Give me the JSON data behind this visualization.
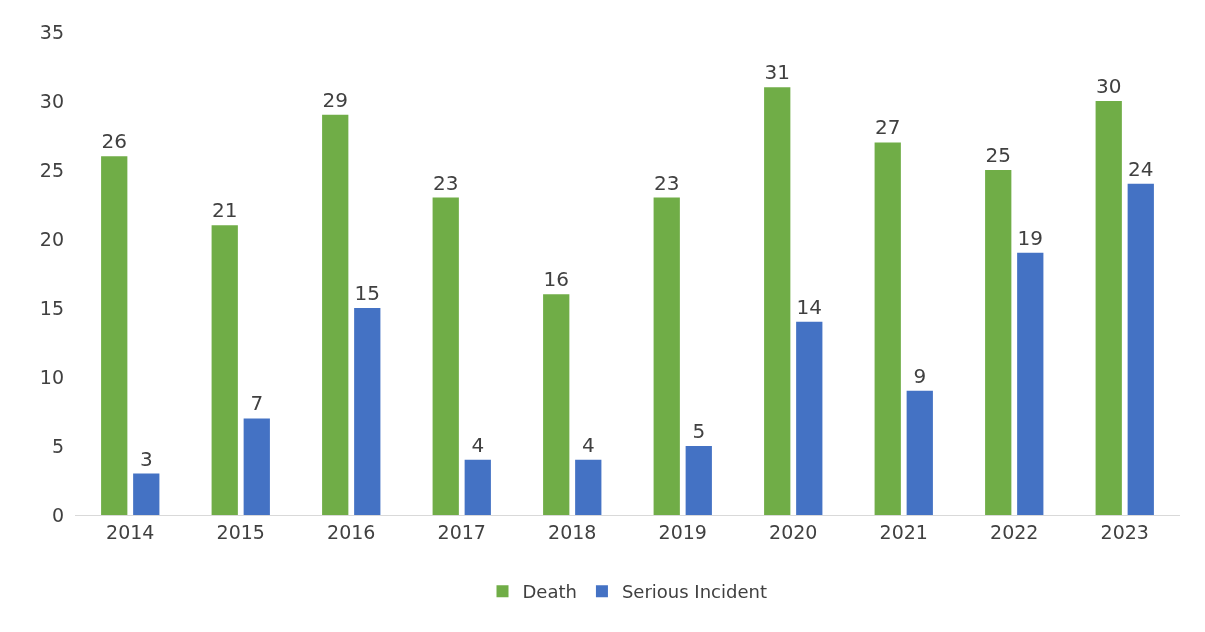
{
  "chart_data": {
    "type": "bar",
    "categories": [
      "2014",
      "2015",
      "2016",
      "2017",
      "2018",
      "2019",
      "2020",
      "2021",
      "2022",
      "2023"
    ],
    "series": [
      {
        "name": "Death",
        "color": "#70ad47",
        "values": [
          26,
          21,
          29,
          23,
          16,
          23,
          31,
          27,
          25,
          30
        ]
      },
      {
        "name": "Serious Incident",
        "color": "#4472c4",
        "values": [
          3,
          7,
          15,
          4,
          4,
          5,
          14,
          9,
          19,
          24
        ]
      }
    ],
    "ylim": [
      0,
      35
    ],
    "yticks": [
      0,
      5,
      10,
      15,
      20,
      25,
      30,
      35
    ],
    "grid": false,
    "legend": "bottom",
    "data_labels": true
  }
}
